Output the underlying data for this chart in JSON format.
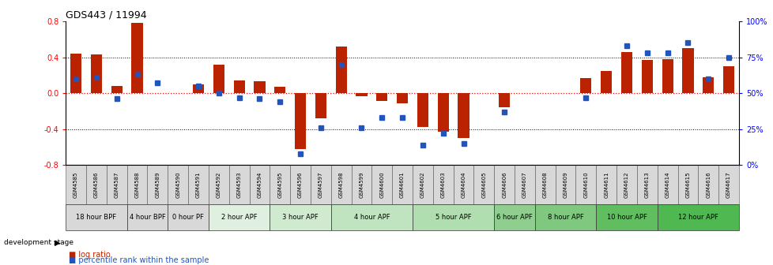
{
  "title": "GDS443 / 11994",
  "samples": [
    "GSM4585",
    "GSM4586",
    "GSM4587",
    "GSM4588",
    "GSM4589",
    "GSM4590",
    "GSM4591",
    "GSM4592",
    "GSM4593",
    "GSM4594",
    "GSM4595",
    "GSM4596",
    "GSM4597",
    "GSM4598",
    "GSM4599",
    "GSM4600",
    "GSM4601",
    "GSM4602",
    "GSM4603",
    "GSM4604",
    "GSM4605",
    "GSM4606",
    "GSM4607",
    "GSM4608",
    "GSM4609",
    "GSM4610",
    "GSM4611",
    "GSM4612",
    "GSM4613",
    "GSM4614",
    "GSM4615",
    "GSM4616",
    "GSM4617"
  ],
  "log_ratio": [
    0.44,
    0.43,
    0.08,
    0.78,
    0.0,
    0.0,
    0.1,
    0.32,
    0.14,
    0.13,
    0.07,
    -0.62,
    -0.28,
    0.52,
    -0.03,
    -0.09,
    -0.11,
    -0.38,
    -0.43,
    -0.5,
    0.0,
    -0.16,
    0.0,
    0.0,
    0.0,
    0.17,
    0.25,
    0.46,
    0.37,
    0.38,
    0.5,
    0.18,
    0.3
  ],
  "percentile": [
    60,
    61,
    46,
    63,
    57,
    null,
    55,
    50,
    47,
    46,
    44,
    8,
    26,
    70,
    26,
    33,
    33,
    14,
    22,
    15,
    null,
    37,
    null,
    null,
    null,
    47,
    null,
    83,
    78,
    78,
    85,
    60,
    75
  ],
  "stage_groups": [
    {
      "label": "18 hour BPF",
      "start": 0,
      "end": 3,
      "color": "#d8d8d8"
    },
    {
      "label": "4 hour BPF",
      "start": 3,
      "end": 5,
      "color": "#d8d8d8"
    },
    {
      "label": "0 hour PF",
      "start": 5,
      "end": 7,
      "color": "#d8d8d8"
    },
    {
      "label": "2 hour APF",
      "start": 7,
      "end": 10,
      "color": "#e0f0e0"
    },
    {
      "label": "3 hour APF",
      "start": 10,
      "end": 13,
      "color": "#d0ead0"
    },
    {
      "label": "4 hour APF",
      "start": 13,
      "end": 17,
      "color": "#c0e4c0"
    },
    {
      "label": "5 hour APF",
      "start": 17,
      "end": 21,
      "color": "#b0deb0"
    },
    {
      "label": "6 hour APF",
      "start": 21,
      "end": 23,
      "color": "#90ce90"
    },
    {
      "label": "8 hour APF",
      "start": 23,
      "end": 26,
      "color": "#80c880"
    },
    {
      "label": "10 hour APF",
      "start": 26,
      "end": 29,
      "color": "#60be60"
    },
    {
      "label": "12 hour APF",
      "start": 29,
      "end": 33,
      "color": "#50b850"
    }
  ],
  "sample_box_color": "#d8d8d8",
  "bar_color": "#bb2200",
  "dot_color": "#2255bb",
  "ylim_left": [
    -0.8,
    0.8
  ],
  "ylim_right": [
    0,
    100
  ],
  "y_ticks_left": [
    -0.8,
    -0.4,
    0.0,
    0.4,
    0.8
  ],
  "y_ticks_right": [
    0,
    25,
    50,
    75,
    100
  ],
  "hline_dotted_vals": [
    0.4,
    -0.4
  ],
  "legend_bar_label": "log ratio",
  "legend_dot_label": "percentile rank within the sample",
  "dev_stage_label": "development stage"
}
